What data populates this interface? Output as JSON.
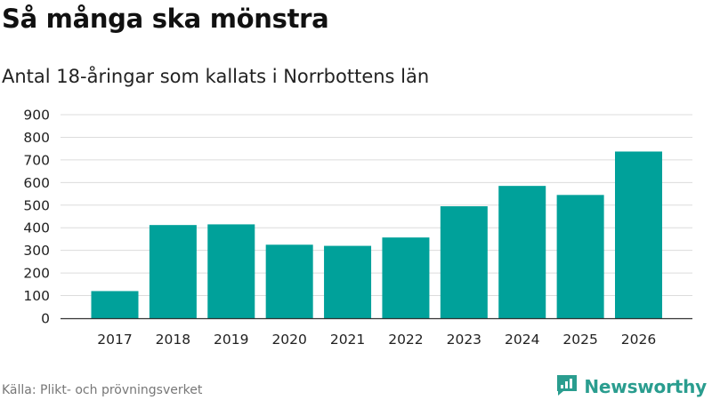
{
  "header": {
    "title": "Så många ska mönstra",
    "subtitle": "Antal 18-åringar som kallats i Norrbottens län"
  },
  "footer": {
    "source": "Källa: Plikt- och prövningsverket",
    "brand": "Newsworthy",
    "brand_icon": "newsworthy-logo-icon"
  },
  "colors": {
    "bar": "#00a19a",
    "grid": "#dcdcdc",
    "axis": "#333333",
    "brand": "#2a9d8f"
  },
  "chart_data": {
    "type": "bar",
    "title": "Så många ska mönstra",
    "subtitle": "Antal 18-åringar som kallats i Norrbottens län",
    "xlabel": "",
    "ylabel": "",
    "categories": [
      "2017",
      "2018",
      "2019",
      "2020",
      "2021",
      "2022",
      "2023",
      "2024",
      "2025",
      "2026"
    ],
    "values": [
      120,
      412,
      415,
      325,
      320,
      357,
      495,
      585,
      545,
      737
    ],
    "ylim": [
      0,
      900
    ],
    "yticks": [
      0,
      100,
      200,
      300,
      400,
      500,
      600,
      700,
      800,
      900
    ],
    "grid": true,
    "legend": "none"
  }
}
